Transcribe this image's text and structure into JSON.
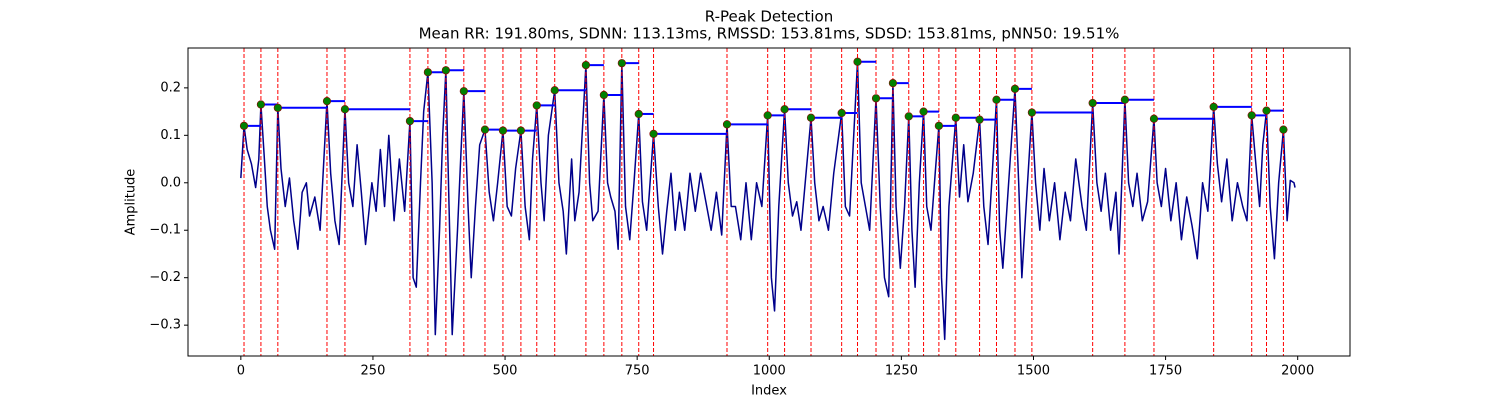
{
  "chart_data": {
    "type": "line",
    "title": "R-Peak Detection",
    "subtitle": "Mean RR: 191.80ms, SDNN: 113.13ms, RMSSD: 153.81ms, SDSD: 153.81ms, pNN50: 19.51%",
    "xlabel": "Index",
    "ylabel": "Amplitude",
    "xlim": [
      -100,
      2099
    ],
    "ylim": [
      -0.365,
      0.284
    ],
    "xticks": [
      0,
      250,
      500,
      750,
      1000,
      1250,
      1500,
      1750,
      2000
    ],
    "yticks": [
      {
        "value": -0.3,
        "label": "−0.3"
      },
      {
        "value": -0.2,
        "label": "−0.2"
      },
      {
        "value": -0.1,
        "label": "−0.1"
      },
      {
        "value": 0,
        "label": "0.0"
      },
      {
        "value": 0.1,
        "label": "0.1"
      },
      {
        "value": 0.2,
        "label": "0.2"
      }
    ],
    "color": "#00008b",
    "peak_color": "green",
    "peak_line_color": "red",
    "rr_line_color": "blue",
    "x": [
      0,
      6,
      12,
      20,
      28,
      34,
      38,
      44,
      50,
      56,
      64,
      70,
      76,
      84,
      92,
      100,
      108,
      116,
      124,
      130,
      140,
      150,
      163,
      170,
      178,
      186,
      197,
      204,
      212,
      220,
      228,
      236,
      248,
      256,
      264,
      272,
      280,
      290,
      300,
      310,
      320,
      326,
      332,
      340,
      346,
      354,
      362,
      368,
      376,
      382,
      388,
      394,
      400,
      410,
      416,
      422,
      430,
      436,
      444,
      452,
      462,
      470,
      478,
      486,
      496,
      504,
      512,
      520,
      530,
      538,
      546,
      552,
      560,
      568,
      574,
      582,
      594,
      602,
      610,
      616,
      626,
      632,
      640,
      653,
      660,
      666,
      676,
      687,
      694,
      700,
      708,
      714,
      721,
      728,
      736,
      744,
      753,
      760,
      768,
      781,
      790,
      798,
      806,
      814,
      822,
      830,
      840,
      850,
      860,
      870,
      880,
      890,
      900,
      910,
      920,
      928,
      936,
      946,
      956,
      966,
      976,
      986,
      997,
      1004,
      1010,
      1018,
      1029,
      1036,
      1044,
      1052,
      1060,
      1068,
      1079,
      1086,
      1094,
      1102,
      1112,
      1122,
      1137,
      1144,
      1152,
      1167,
      1174,
      1182,
      1190,
      1202,
      1210,
      1218,
      1226,
      1234,
      1240,
      1248,
      1256,
      1264,
      1270,
      1276,
      1284,
      1292,
      1298,
      1306,
      1314,
      1321,
      1326,
      1332,
      1340,
      1353,
      1360,
      1368,
      1376,
      1386,
      1398,
      1406,
      1414,
      1422,
      1430,
      1436,
      1442,
      1450,
      1465,
      1472,
      1478,
      1486,
      1497,
      1504,
      1512,
      1520,
      1530,
      1540,
      1550,
      1560,
      1570,
      1580,
      1592,
      1600,
      1612,
      1620,
      1628,
      1636,
      1646,
      1656,
      1662,
      1673,
      1680,
      1688,
      1696,
      1706,
      1716,
      1728,
      1734,
      1742,
      1750,
      1760,
      1770,
      1780,
      1790,
      1800,
      1810,
      1820,
      1830,
      1841,
      1848,
      1856,
      1866,
      1876,
      1886,
      1896,
      1904,
      1913,
      1920,
      1928,
      1934,
      1941,
      1948,
      1956,
      1964,
      1973,
      1980,
      1986,
      1993,
      1995
    ],
    "values": [
      0.01,
      0.12,
      0.07,
      0.04,
      -0.01,
      0.05,
      0.165,
      0.06,
      -0.05,
      -0.1,
      -0.14,
      0.158,
      0.03,
      -0.05,
      0.01,
      -0.08,
      -0.14,
      -0.02,
      0.0,
      -0.07,
      -0.03,
      -0.1,
      0.172,
      0.02,
      -0.08,
      -0.13,
      0.155,
      0.0,
      -0.05,
      0.08,
      -0.02,
      -0.13,
      0.0,
      -0.06,
      0.07,
      -0.05,
      0.1,
      -0.08,
      0.05,
      -0.06,
      0.13,
      -0.2,
      -0.22,
      0.0,
      0.15,
      0.233,
      0.0,
      -0.32,
      -0.1,
      0.1,
      0.237,
      -0.05,
      -0.32,
      -0.1,
      0.05,
      0.193,
      -0.05,
      -0.2,
      -0.05,
      0.08,
      0.112,
      -0.02,
      -0.08,
      0.0,
      0.11,
      -0.05,
      -0.07,
      0.03,
      0.11,
      -0.05,
      -0.12,
      0.05,
      0.163,
      0.0,
      -0.08,
      0.1,
      0.195,
      0.0,
      -0.06,
      -0.15,
      0.05,
      -0.08,
      -0.02,
      0.248,
      0.0,
      -0.08,
      -0.06,
      0.185,
      0.0,
      -0.03,
      -0.06,
      -0.14,
      0.252,
      -0.05,
      -0.12,
      0.0,
      0.145,
      -0.04,
      -0.1,
      0.103,
      -0.05,
      -0.15,
      -0.06,
      0.02,
      -0.1,
      -0.02,
      -0.1,
      0.02,
      -0.06,
      0.02,
      -0.04,
      -0.1,
      -0.02,
      -0.11,
      0.123,
      -0.05,
      -0.05,
      -0.12,
      0.0,
      -0.12,
      0.0,
      -0.05,
      0.142,
      -0.2,
      -0.27,
      -0.05,
      0.155,
      0.0,
      -0.07,
      -0.04,
      -0.1,
      0.0,
      0.137,
      0.0,
      -0.08,
      -0.05,
      -0.1,
      0.02,
      0.147,
      -0.05,
      -0.07,
      0.255,
      0.0,
      -0.05,
      -0.1,
      0.178,
      -0.05,
      -0.2,
      -0.24,
      0.21,
      -0.05,
      -0.18,
      -0.05,
      0.14,
      -0.1,
      -0.22,
      0.0,
      0.15,
      -0.05,
      -0.1,
      0.02,
      0.12,
      -0.2,
      -0.33,
      -0.05,
      0.137,
      -0.03,
      0.08,
      -0.04,
      0.02,
      0.133,
      -0.05,
      -0.13,
      0.02,
      0.175,
      -0.1,
      -0.18,
      -0.05,
      0.198,
      0.0,
      -0.2,
      -0.05,
      0.148,
      0.0,
      -0.1,
      0.03,
      -0.08,
      0.0,
      -0.12,
      -0.02,
      -0.08,
      0.05,
      -0.05,
      -0.1,
      0.168,
      0.0,
      -0.06,
      0.02,
      -0.1,
      -0.02,
      -0.15,
      0.175,
      0.0,
      -0.05,
      0.02,
      -0.08,
      -0.04,
      0.135,
      0.0,
      -0.05,
      0.03,
      -0.08,
      0.0,
      -0.12,
      -0.03,
      -0.09,
      -0.16,
      0.0,
      -0.06,
      0.16,
      0.04,
      -0.04,
      0.05,
      -0.08,
      0.0,
      -0.05,
      -0.08,
      0.142,
      0.05,
      -0.05,
      0.08,
      0.152,
      -0.05,
      -0.16,
      0.0,
      0.112,
      -0.08,
      0.005,
      0.0,
      -0.01
    ],
    "peaks": {
      "x": [
        6,
        38,
        70,
        163,
        197,
        320,
        354,
        388,
        422,
        462,
        496,
        530,
        560,
        594,
        653,
        687,
        721,
        753,
        781,
        920,
        997,
        1029,
        1079,
        1137,
        1167,
        1202,
        1234,
        1264,
        1292,
        1321,
        1353,
        1398,
        1430,
        1465,
        1497,
        1612,
        1673,
        1728,
        1841,
        1913,
        1941,
        1973
      ],
      "values": [
        0.12,
        0.165,
        0.158,
        0.172,
        0.155,
        0.13,
        0.233,
        0.237,
        0.193,
        0.112,
        0.11,
        0.11,
        0.163,
        0.195,
        0.248,
        0.185,
        0.252,
        0.145,
        0.103,
        0.123,
        0.142,
        0.155,
        0.137,
        0.147,
        0.255,
        0.178,
        0.21,
        0.14,
        0.15,
        0.12,
        0.137,
        0.133,
        0.175,
        0.198,
        0.148,
        0.168,
        0.175,
        0.135,
        0.16,
        0.142,
        0.152,
        0.112
      ]
    }
  }
}
